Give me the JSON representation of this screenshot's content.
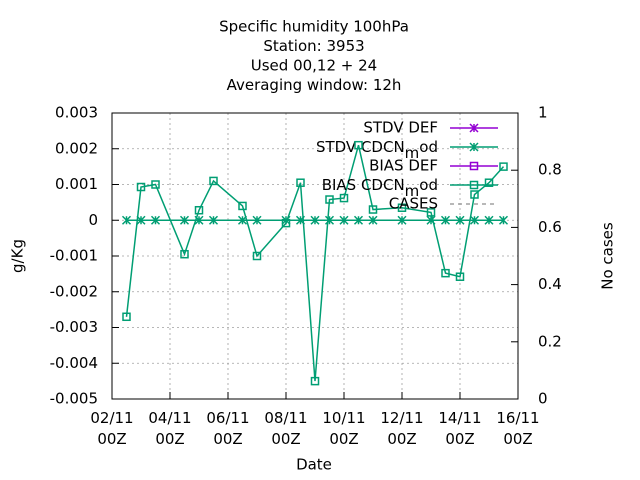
{
  "chart_data": {
    "type": "line",
    "title": [
      "Specific humidity 100hPa",
      "Station:     3953",
      "Used  00,12  + 24",
      "Averaging window: 12h"
    ],
    "x_label": "Date",
    "y_label": "g/Kg",
    "y2_label": "No cases",
    "x": [
      "02/11 12Z",
      "03/11 00Z",
      "03/11 12Z",
      "04/11 12Z",
      "05/11 00Z",
      "05/11 12Z",
      "06/11 12Z",
      "07/11 00Z",
      "08/11 00Z",
      "08/11 12Z",
      "09/11 00Z",
      "09/11 12Z",
      "10/11 00Z",
      "10/11 12Z",
      "11/11 00Z",
      "12/11 00Z",
      "13/11 00Z",
      "13/11 12Z",
      "14/11 00Z",
      "14/11 12Z",
      "15/11 00Z",
      "15/11 12Z"
    ],
    "xlim": [
      "02/11 00Z",
      "16/11 00Z"
    ],
    "xticks": [
      {
        "value": "02/11 00Z",
        "label": "02/11\n00Z"
      },
      {
        "value": "04/11 00Z",
        "label": "04/11\n00Z"
      },
      {
        "value": "06/11 00Z",
        "label": "06/11\n00Z"
      },
      {
        "value": "08/11 00Z",
        "label": "08/11\n00Z"
      },
      {
        "value": "10/11 00Z",
        "label": "10/11\n00Z"
      },
      {
        "value": "12/11 00Z",
        "label": "12/11\n00Z"
      },
      {
        "value": "14/11 00Z",
        "label": "14/11\n00Z"
      },
      {
        "value": "16/11 00Z",
        "label": "16/11\n00Z"
      }
    ],
    "ylim": [
      -0.005,
      0.003
    ],
    "yticks": [
      -0.005,
      -0.004,
      -0.003,
      -0.002,
      -0.001,
      0,
      0.001,
      0.002,
      0.003
    ],
    "y2lim": [
      0,
      1
    ],
    "y2ticks": [
      0,
      0.2,
      0.4,
      0.6,
      0.8,
      1
    ],
    "grid": true,
    "legend": "upper right",
    "series": [
      {
        "name": "STDV DEF",
        "color": "#9400d3",
        "marker": "x",
        "values": [
          null,
          null,
          null,
          null,
          null,
          null,
          null,
          null,
          null,
          null,
          null,
          null,
          null,
          null,
          null,
          null,
          null,
          null,
          null,
          null,
          null,
          null
        ]
      },
      {
        "name": "STDV CDCN_mod",
        "color": "#009e73",
        "marker": "x",
        "values": [
          0,
          0,
          0,
          0,
          0,
          0,
          0,
          0,
          0,
          0,
          0,
          0,
          0,
          0,
          0,
          0,
          0,
          0,
          0,
          0,
          0,
          0
        ]
      },
      {
        "name": "BIAS DEF",
        "color": "#9400d3",
        "marker": "square",
        "values": [
          null,
          null,
          null,
          null,
          null,
          null,
          null,
          null,
          null,
          null,
          null,
          null,
          null,
          null,
          null,
          null,
          null,
          null,
          null,
          null,
          null,
          null
        ]
      },
      {
        "name": "BIAS CDCN_mod",
        "color": "#009e73",
        "marker": "square",
        "values": [
          -0.0027,
          0.00093,
          0.001,
          -0.00095,
          0.00028,
          0.0011,
          0.0004,
          -0.001,
          -8e-05,
          0.00105,
          -0.0045,
          0.00058,
          0.00062,
          0.0021,
          0.0003,
          0.00035,
          0.00022,
          -0.00148,
          -0.00158,
          0.00072,
          0.00105,
          0.0015
        ]
      },
      {
        "name": "CASES",
        "color": "#a0a0a0",
        "dashed": true,
        "axis": "y2",
        "values": [
          null,
          null,
          null,
          null,
          null,
          null,
          null,
          null,
          null,
          null,
          null,
          null,
          null,
          null,
          null,
          null,
          null,
          null,
          null,
          null,
          null,
          null
        ]
      }
    ]
  }
}
